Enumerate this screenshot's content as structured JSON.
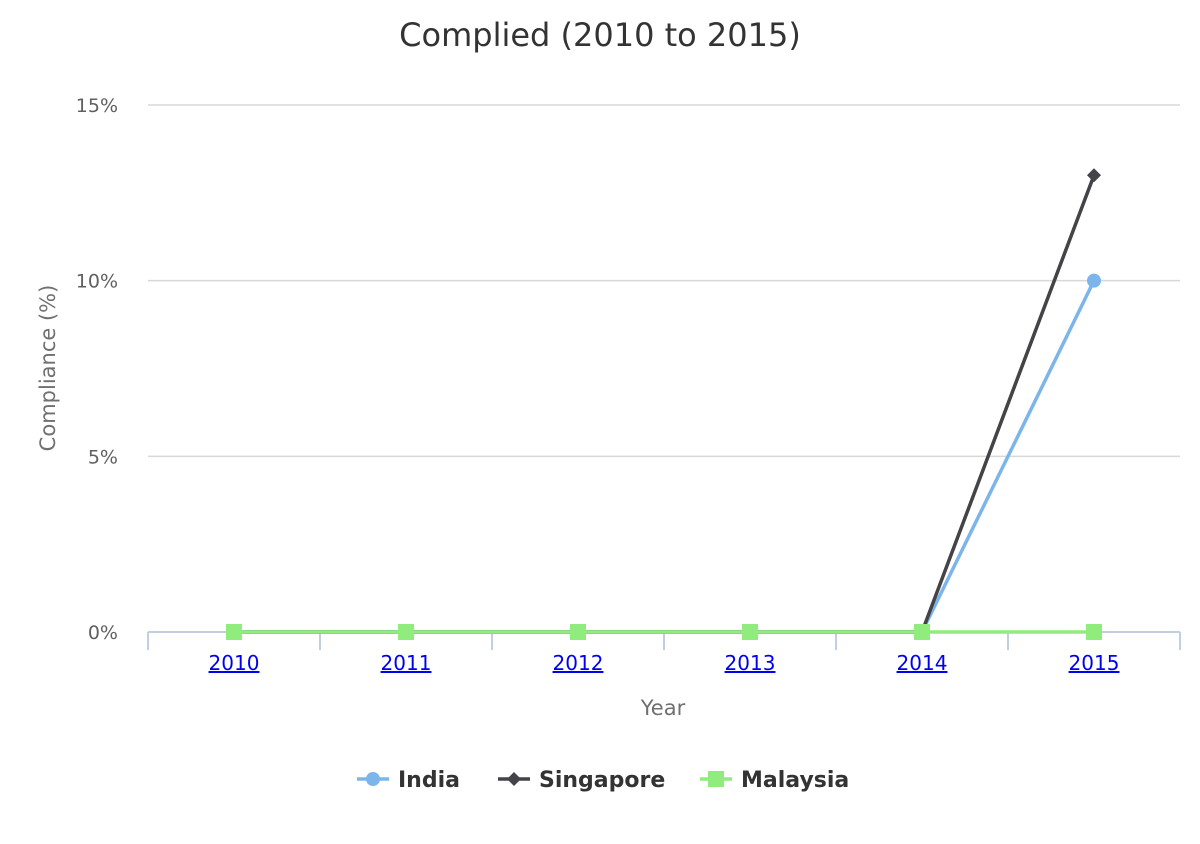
{
  "chart_data": {
    "type": "line",
    "title": "Complied (2010 to 2015)",
    "xlabel": "Year",
    "ylabel": "Compliance (%)",
    "categories": [
      "2010",
      "2011",
      "2012",
      "2013",
      "2014",
      "2015"
    ],
    "ylim": [
      0,
      15
    ],
    "yticks": [
      0,
      5,
      10,
      15
    ],
    "ytick_labels": [
      "0%",
      "5%",
      "10%",
      "15%"
    ],
    "grid": true,
    "legend_position": "bottom",
    "series": [
      {
        "name": "India",
        "values": [
          0,
          0,
          0,
          0,
          0,
          10
        ],
        "color": "#7cb5ec",
        "marker": "circle"
      },
      {
        "name": "Singapore",
        "values": [
          0,
          0,
          0,
          0,
          0,
          13
        ],
        "color": "#434348",
        "marker": "diamond"
      },
      {
        "name": "Malaysia",
        "values": [
          0,
          0,
          0,
          0,
          0,
          0
        ],
        "color": "#90ed7d",
        "marker": "square"
      }
    ]
  }
}
